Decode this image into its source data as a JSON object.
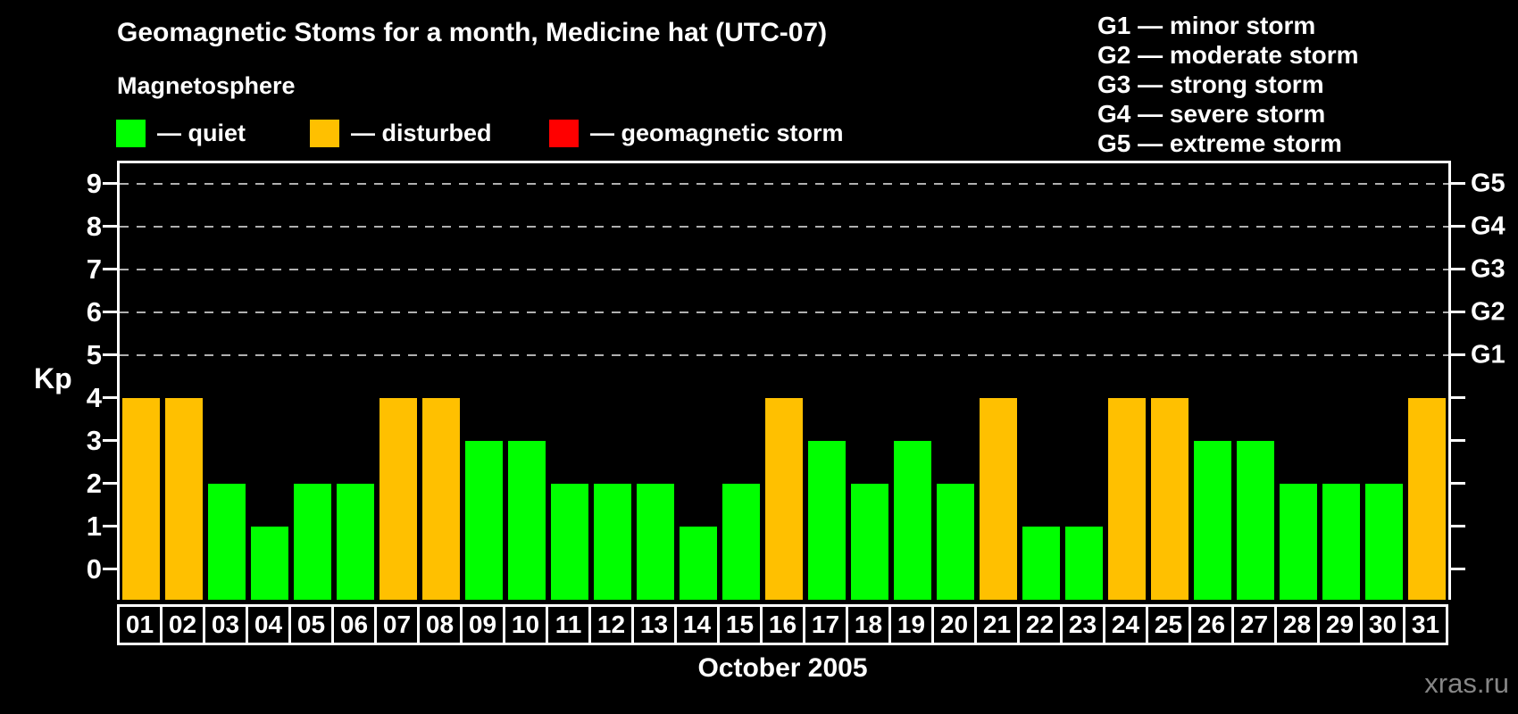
{
  "header": {
    "title": "Geomagnetic Stoms for a month, Medicine hat (UTC-07)",
    "subtitle": "Magnetosphere"
  },
  "legend": {
    "items": [
      {
        "name": "quiet",
        "label": "— quiet",
        "status": "quiet"
      },
      {
        "name": "disturbed",
        "label": "— disturbed",
        "status": "disturbed"
      },
      {
        "name": "geomagnetic-storm",
        "label": "— geomagnetic storm",
        "status": "storm"
      }
    ]
  },
  "storm_scale_legend": {
    "lines": [
      "G1 — minor storm",
      "G2 — moderate storm",
      "G3 — strong storm",
      "G4 — severe storm",
      "G5 — extreme storm"
    ]
  },
  "chart_data": {
    "type": "bar",
    "title": "Geomagnetic Stoms for a month, Medicine hat (UTC-07)",
    "subtitle": "Magnetosphere",
    "xlabel": "October 2005",
    "ylabel": "Kp",
    "ylim": [
      0,
      9
    ],
    "yticks": [
      0,
      1,
      2,
      3,
      4,
      5,
      6,
      7,
      8,
      9
    ],
    "gridlines_at": [
      5,
      6,
      7,
      8,
      9
    ],
    "grid": "dashed horizontal at Kp 5-9 only",
    "legend_position": "top",
    "right_axis_labels": [
      {
        "kp": 5,
        "label": "G1"
      },
      {
        "kp": 6,
        "label": "G2"
      },
      {
        "kp": 7,
        "label": "G3"
      },
      {
        "kp": 8,
        "label": "G4"
      },
      {
        "kp": 9,
        "label": "G5"
      }
    ],
    "categories": [
      "01",
      "02",
      "03",
      "04",
      "05",
      "06",
      "07",
      "08",
      "09",
      "10",
      "11",
      "12",
      "13",
      "14",
      "15",
      "16",
      "17",
      "18",
      "19",
      "20",
      "21",
      "22",
      "23",
      "24",
      "25",
      "26",
      "27",
      "28",
      "29",
      "30",
      "31"
    ],
    "values": [
      4,
      4,
      2,
      1,
      2,
      2,
      4,
      4,
      3,
      3,
      2,
      2,
      2,
      1,
      2,
      4,
      3,
      2,
      3,
      2,
      4,
      1,
      1,
      4,
      4,
      3,
      3,
      2,
      2,
      2,
      4
    ],
    "status": [
      "disturbed",
      "disturbed",
      "quiet",
      "quiet",
      "quiet",
      "quiet",
      "disturbed",
      "disturbed",
      "quiet",
      "quiet",
      "quiet",
      "quiet",
      "quiet",
      "quiet",
      "quiet",
      "disturbed",
      "quiet",
      "quiet",
      "quiet",
      "quiet",
      "disturbed",
      "quiet",
      "quiet",
      "disturbed",
      "disturbed",
      "quiet",
      "quiet",
      "quiet",
      "quiet",
      "quiet",
      "disturbed"
    ],
    "status_colors": {
      "quiet": "#00FF00",
      "disturbed": "#FFC000",
      "storm": "#FF0000"
    }
  },
  "footer": {
    "watermark": "xras.ru"
  }
}
